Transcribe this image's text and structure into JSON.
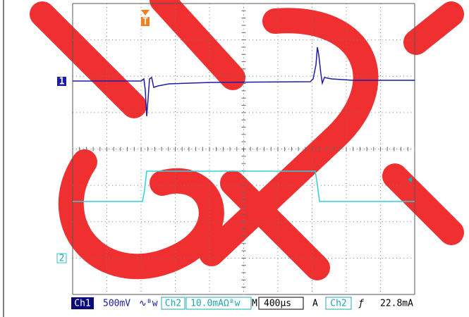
{
  "trigger_marker": "T",
  "channel_markers": [
    "1",
    "2"
  ],
  "status_bar": {
    "ch1_label": "Ch1",
    "ch1_scale": "500mV",
    "ch1_coupling": "∿ᴮw",
    "ch2_label": "Ch2",
    "ch2_scale": "10.0mAΩᴮw",
    "timebase_label": "M",
    "timebase": "400µs",
    "trigger_mode": "A",
    "trigger_source": "Ch2",
    "trigger_slope": "ƒ",
    "trigger_level": "22.8mA"
  }
}
